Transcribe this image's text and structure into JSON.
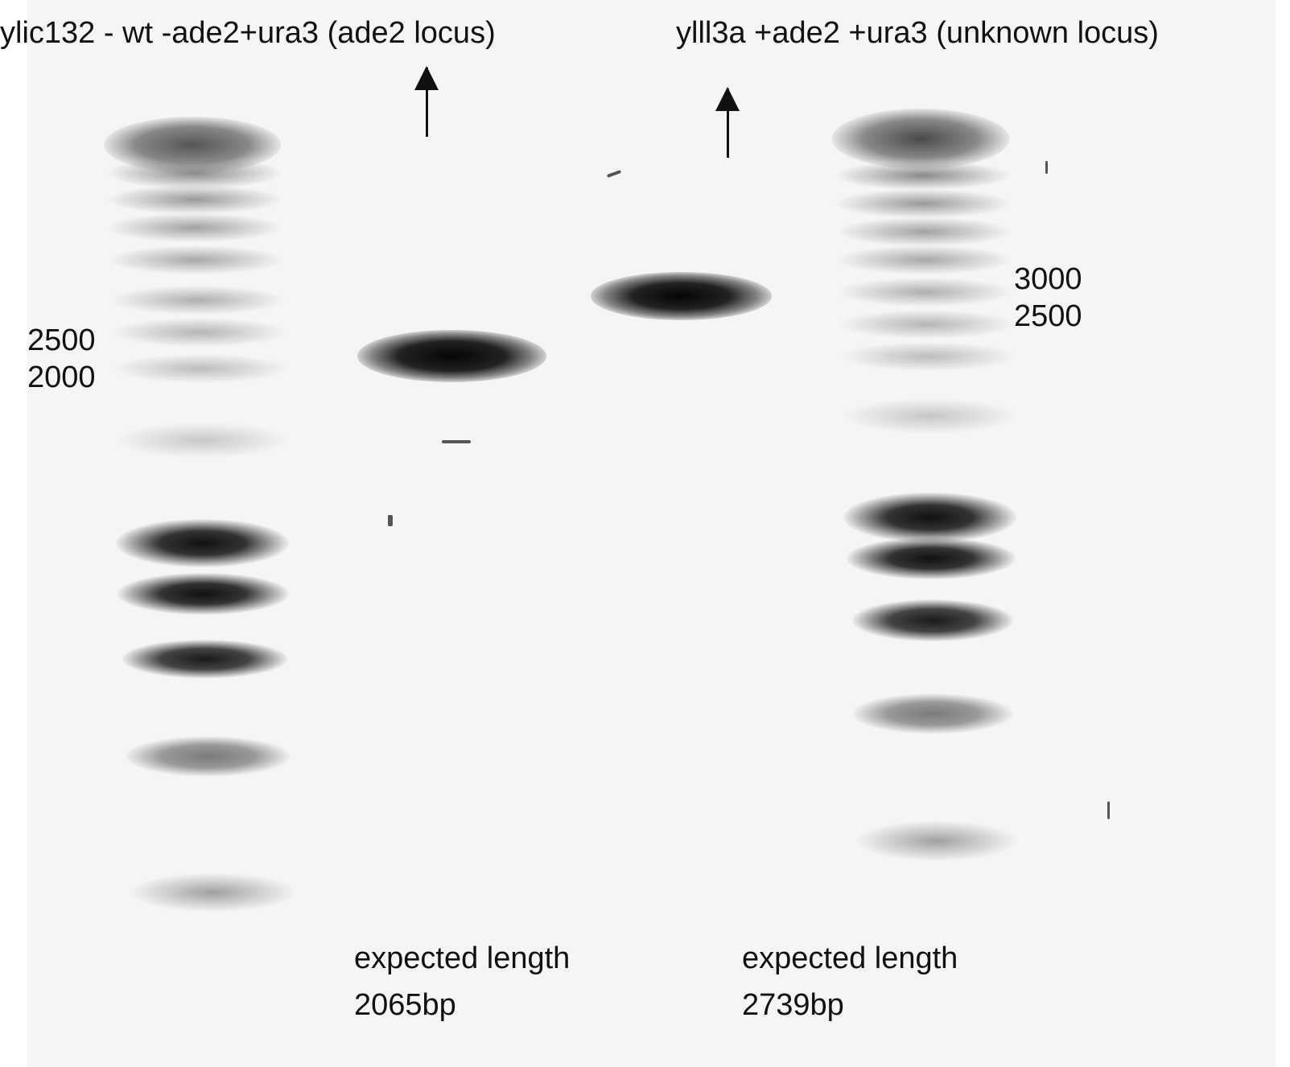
{
  "labels": {
    "left_sample": "ylic132 - wt -ade2+ura3 (ade2 locus)",
    "right_sample": "ylll3a +ade2 +ura3 (unknown locus)",
    "left_markers": [
      "2500",
      "2000"
    ],
    "right_markers": [
      "3000",
      "2500"
    ],
    "left_expected_line1": "expected length",
    "left_expected_line2": "2065bp",
    "right_expected_line1": "expected length",
    "right_expected_line2": "2739bp"
  },
  "icons": {
    "left_arrow": "arrow-up-icon",
    "right_arrow": "arrow-up-icon"
  },
  "colors": {
    "gel_background": "#f5f5f5",
    "band_dark": "#111111",
    "text": "#111111"
  }
}
